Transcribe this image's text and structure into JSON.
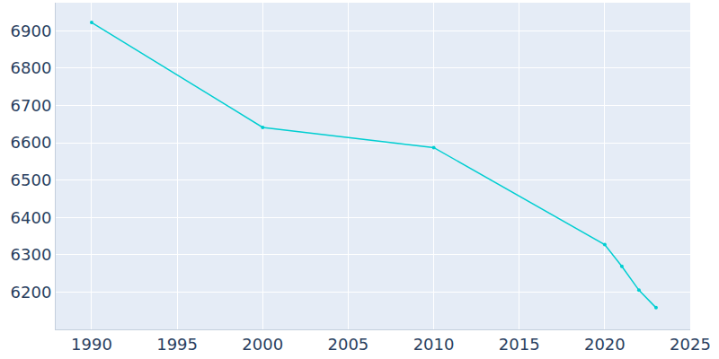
{
  "chart_data": {
    "type": "line",
    "x": [
      1990,
      2000,
      2010,
      2020,
      2021,
      2022,
      2023
    ],
    "values": [
      6922,
      6641,
      6587,
      6327,
      6269,
      6205,
      6158
    ],
    "color": "#00ced1",
    "marker": "circle",
    "xlim": [
      1987.9,
      2025
    ],
    "xticks": [
      1990,
      1995,
      2000,
      2005,
      2010,
      2015,
      2020,
      2025
    ],
    "ylim": [
      6100,
      6975
    ],
    "yticks": [
      6200,
      6300,
      6400,
      6500,
      6600,
      6700,
      6800,
      6900
    ],
    "grid": true
  }
}
